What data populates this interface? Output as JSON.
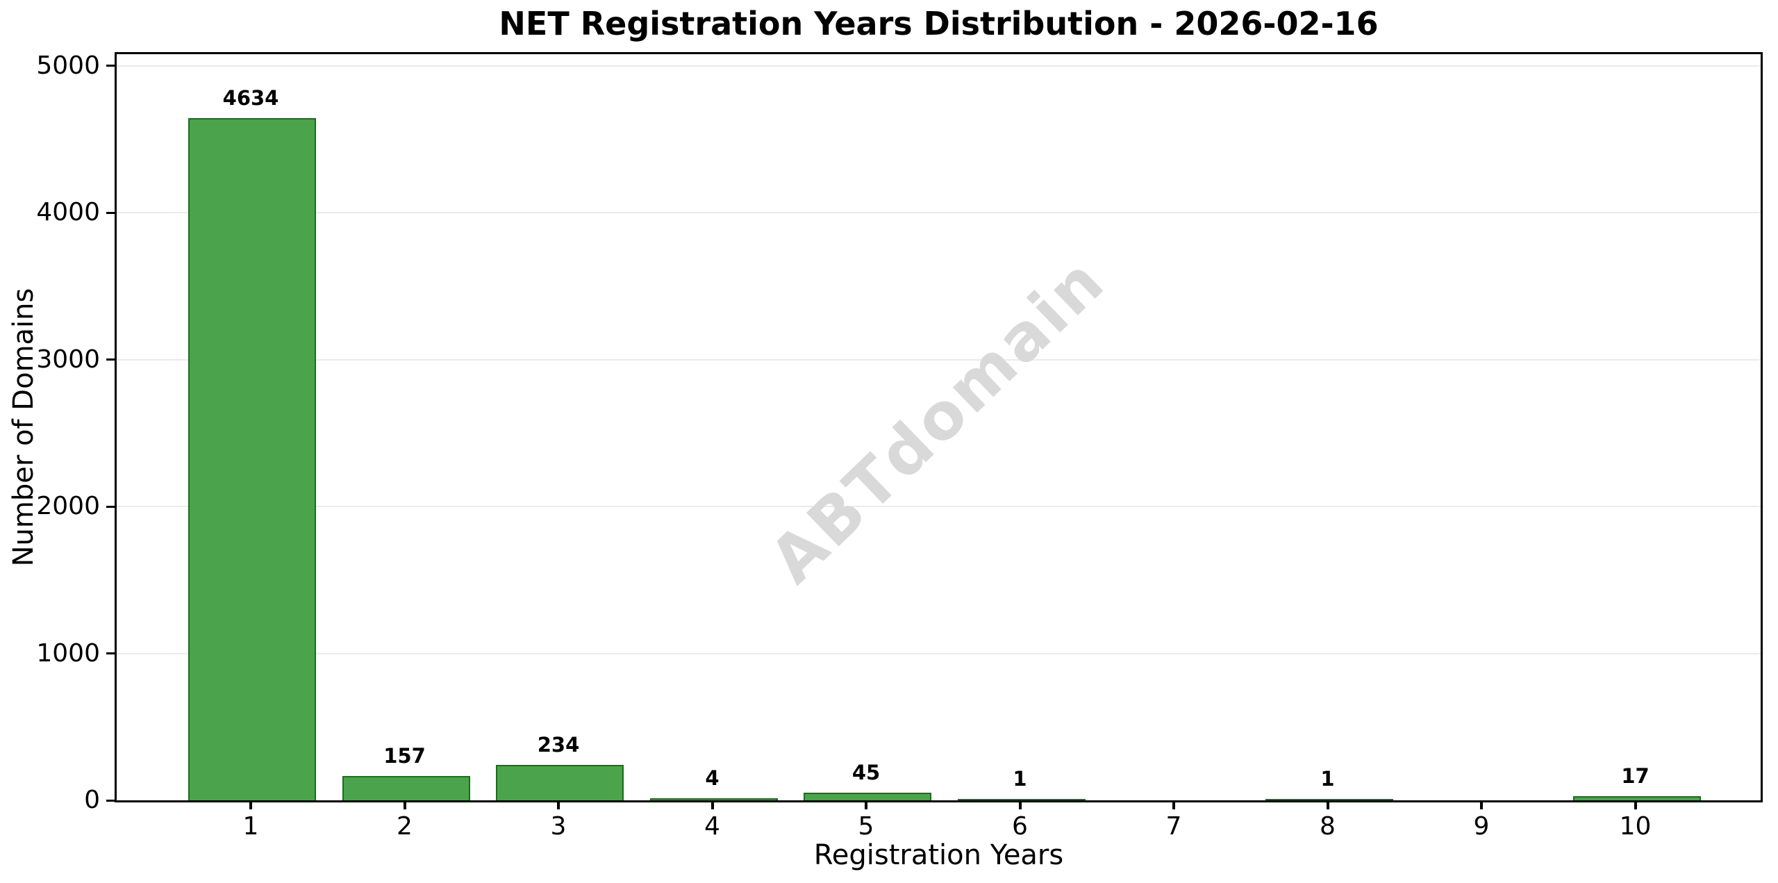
{
  "chart_data": {
    "type": "bar",
    "title": "NET Registration Years Distribution - 2026-02-16",
    "xlabel": "Registration Years",
    "ylabel": "Number of Domains",
    "categories": [
      "1",
      "2",
      "3",
      "4",
      "5",
      "6",
      "7",
      "8",
      "9",
      "10"
    ],
    "values": [
      4634,
      157,
      234,
      4,
      45,
      1,
      0,
      1,
      0,
      17
    ],
    "bar_value_labels": [
      "4634",
      "157",
      "234",
      "4",
      "45",
      "1",
      "",
      "1",
      "",
      "17"
    ],
    "ylim": [
      0,
      5080
    ],
    "yticks": [
      0,
      1000,
      2000,
      3000,
      4000,
      5000
    ],
    "grid": "horizontal",
    "legend": "none",
    "watermark": "ABTdomain",
    "colors": {
      "bar_fill": "#4BA34B",
      "bar_edge": "#1B6E1B",
      "grid": "#EBEBEB",
      "watermark_text": "#D9D9D9",
      "text": "#000000",
      "background": "#FFFFFF"
    }
  }
}
